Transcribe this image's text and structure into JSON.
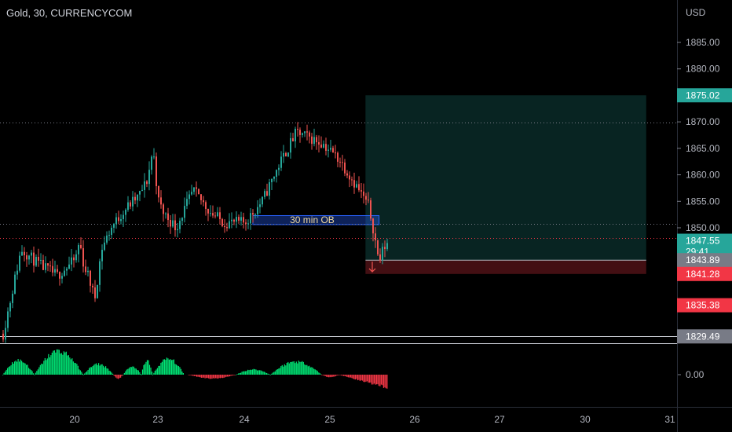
{
  "header": {
    "title": "Gold, 30, CURRENCYCOM"
  },
  "chart_data": {
    "type": "candlestick",
    "currency_label": "USD",
    "price_axis": {
      "ylim": [
        1826,
        1892
      ],
      "ticks": [
        "1885.00",
        "1880.00",
        "1870.00",
        "1865.00",
        "1860.00",
        "1855.00",
        "1850.00"
      ]
    },
    "time_axis": {
      "ticks": [
        "20",
        "23",
        "24",
        "25",
        "26",
        "27",
        "30",
        "31"
      ]
    },
    "price_tags": [
      {
        "label": "1875.02",
        "value": 1875.02,
        "color": "#26a69a"
      },
      {
        "label": "1847.55",
        "value": 1847.55,
        "color": "#26a69a",
        "countdown": "29:41"
      },
      {
        "label": "1843.89",
        "value": 1843.89,
        "color": "#787b86"
      },
      {
        "label": "1841.28",
        "value": 1841.28,
        "color": "#f23645"
      },
      {
        "label": "1835.38",
        "value": 1835.38,
        "color": "#f23645"
      },
      {
        "label": "1829.49",
        "value": 1829.49,
        "color": "#787b86"
      }
    ],
    "horizontal_levels": [
      {
        "value": 1869.8,
        "style": "dotted",
        "color": "#787b86"
      },
      {
        "value": 1850.7,
        "style": "dotted",
        "color": "#787b86"
      },
      {
        "value": 1848.0,
        "style": "dotted",
        "color": "#f23645"
      },
      {
        "value": 1829.49,
        "style": "solid",
        "color": "#d1d4dc"
      }
    ],
    "order_block": {
      "label": "30 min OB",
      "price_top": 1852.3,
      "price_bottom": 1850.6,
      "start_day": 24.1,
      "end_day": 25.58
    },
    "long_position": {
      "entry": 1843.89,
      "target": 1875.02,
      "stop": 1841.28,
      "start_day": 25.42,
      "end_day": 30.72
    },
    "price_path": [
      [
        19.2,
        1830.0
      ],
      [
        19.4,
        1846.0
      ],
      [
        19.6,
        1843.0
      ],
      [
        19.8,
        1841.0
      ],
      [
        20.0,
        1844.0
      ],
      [
        20.15,
        1847.5
      ],
      [
        20.3,
        1843.0
      ],
      [
        20.5,
        1840.5
      ],
      [
        20.7,
        1836.5
      ],
      [
        20.95,
        1846.0
      ],
      [
        21.3,
        1850.0
      ],
      [
        21.8,
        1853.5
      ],
      [
        22.3,
        1856.0
      ],
      [
        22.6,
        1859.0
      ],
      [
        22.8,
        1865.0
      ],
      [
        22.95,
        1857.0
      ],
      [
        23.05,
        1853.0
      ],
      [
        23.2,
        1850.0
      ],
      [
        23.4,
        1857.0
      ],
      [
        23.6,
        1853.0
      ],
      [
        23.75,
        1851.0
      ],
      [
        24.0,
        1851.0
      ],
      [
        24.2,
        1855.0
      ],
      [
        24.4,
        1862.0
      ],
      [
        24.6,
        1868.0
      ],
      [
        24.9,
        1866.0
      ],
      [
        25.1,
        1863.0
      ],
      [
        25.3,
        1858.0
      ],
      [
        25.45,
        1854.0
      ],
      [
        25.5,
        1850.0
      ],
      [
        25.57,
        1843.5
      ],
      [
        25.62,
        1846.0
      ],
      [
        25.68,
        1847.55
      ]
    ],
    "oscillator": {
      "zero_label": "0.00",
      "segments": [
        {
          "start_day": 19.2,
          "end_day": 19.55,
          "peak": 0.55,
          "color": "#00e676"
        },
        {
          "start_day": 19.55,
          "end_day": 20.3,
          "peak": 0.9,
          "color": "#00e676"
        },
        {
          "start_day": 20.3,
          "end_day": 21.4,
          "peak": 0.4,
          "color": "#00e676"
        },
        {
          "start_day": 21.4,
          "end_day": 21.75,
          "peak": -0.15,
          "color": "#f23645"
        },
        {
          "start_day": 21.75,
          "end_day": 22.4,
          "peak": 0.3,
          "color": "#00e676"
        },
        {
          "start_day": 22.4,
          "end_day": 22.8,
          "peak": 0.55,
          "color": "#00e676"
        },
        {
          "start_day": 22.8,
          "end_day": 23.3,
          "peak": 0.6,
          "color": "#00e676"
        },
        {
          "start_day": 23.35,
          "end_day": 23.9,
          "peak": -0.15,
          "color": "#f23645"
        },
        {
          "start_day": 23.9,
          "end_day": 24.3,
          "peak": 0.2,
          "color": "#00e676"
        },
        {
          "start_day": 24.3,
          "end_day": 24.9,
          "peak": 0.5,
          "color": "#00e676"
        },
        {
          "start_day": 24.9,
          "end_day": 25.1,
          "peak": -0.1,
          "color": "#f23645"
        },
        {
          "start_day": 25.1,
          "end_day": 25.68,
          "peak": -0.5,
          "color": "#f23645"
        }
      ]
    },
    "grid": false,
    "legend": "none"
  }
}
